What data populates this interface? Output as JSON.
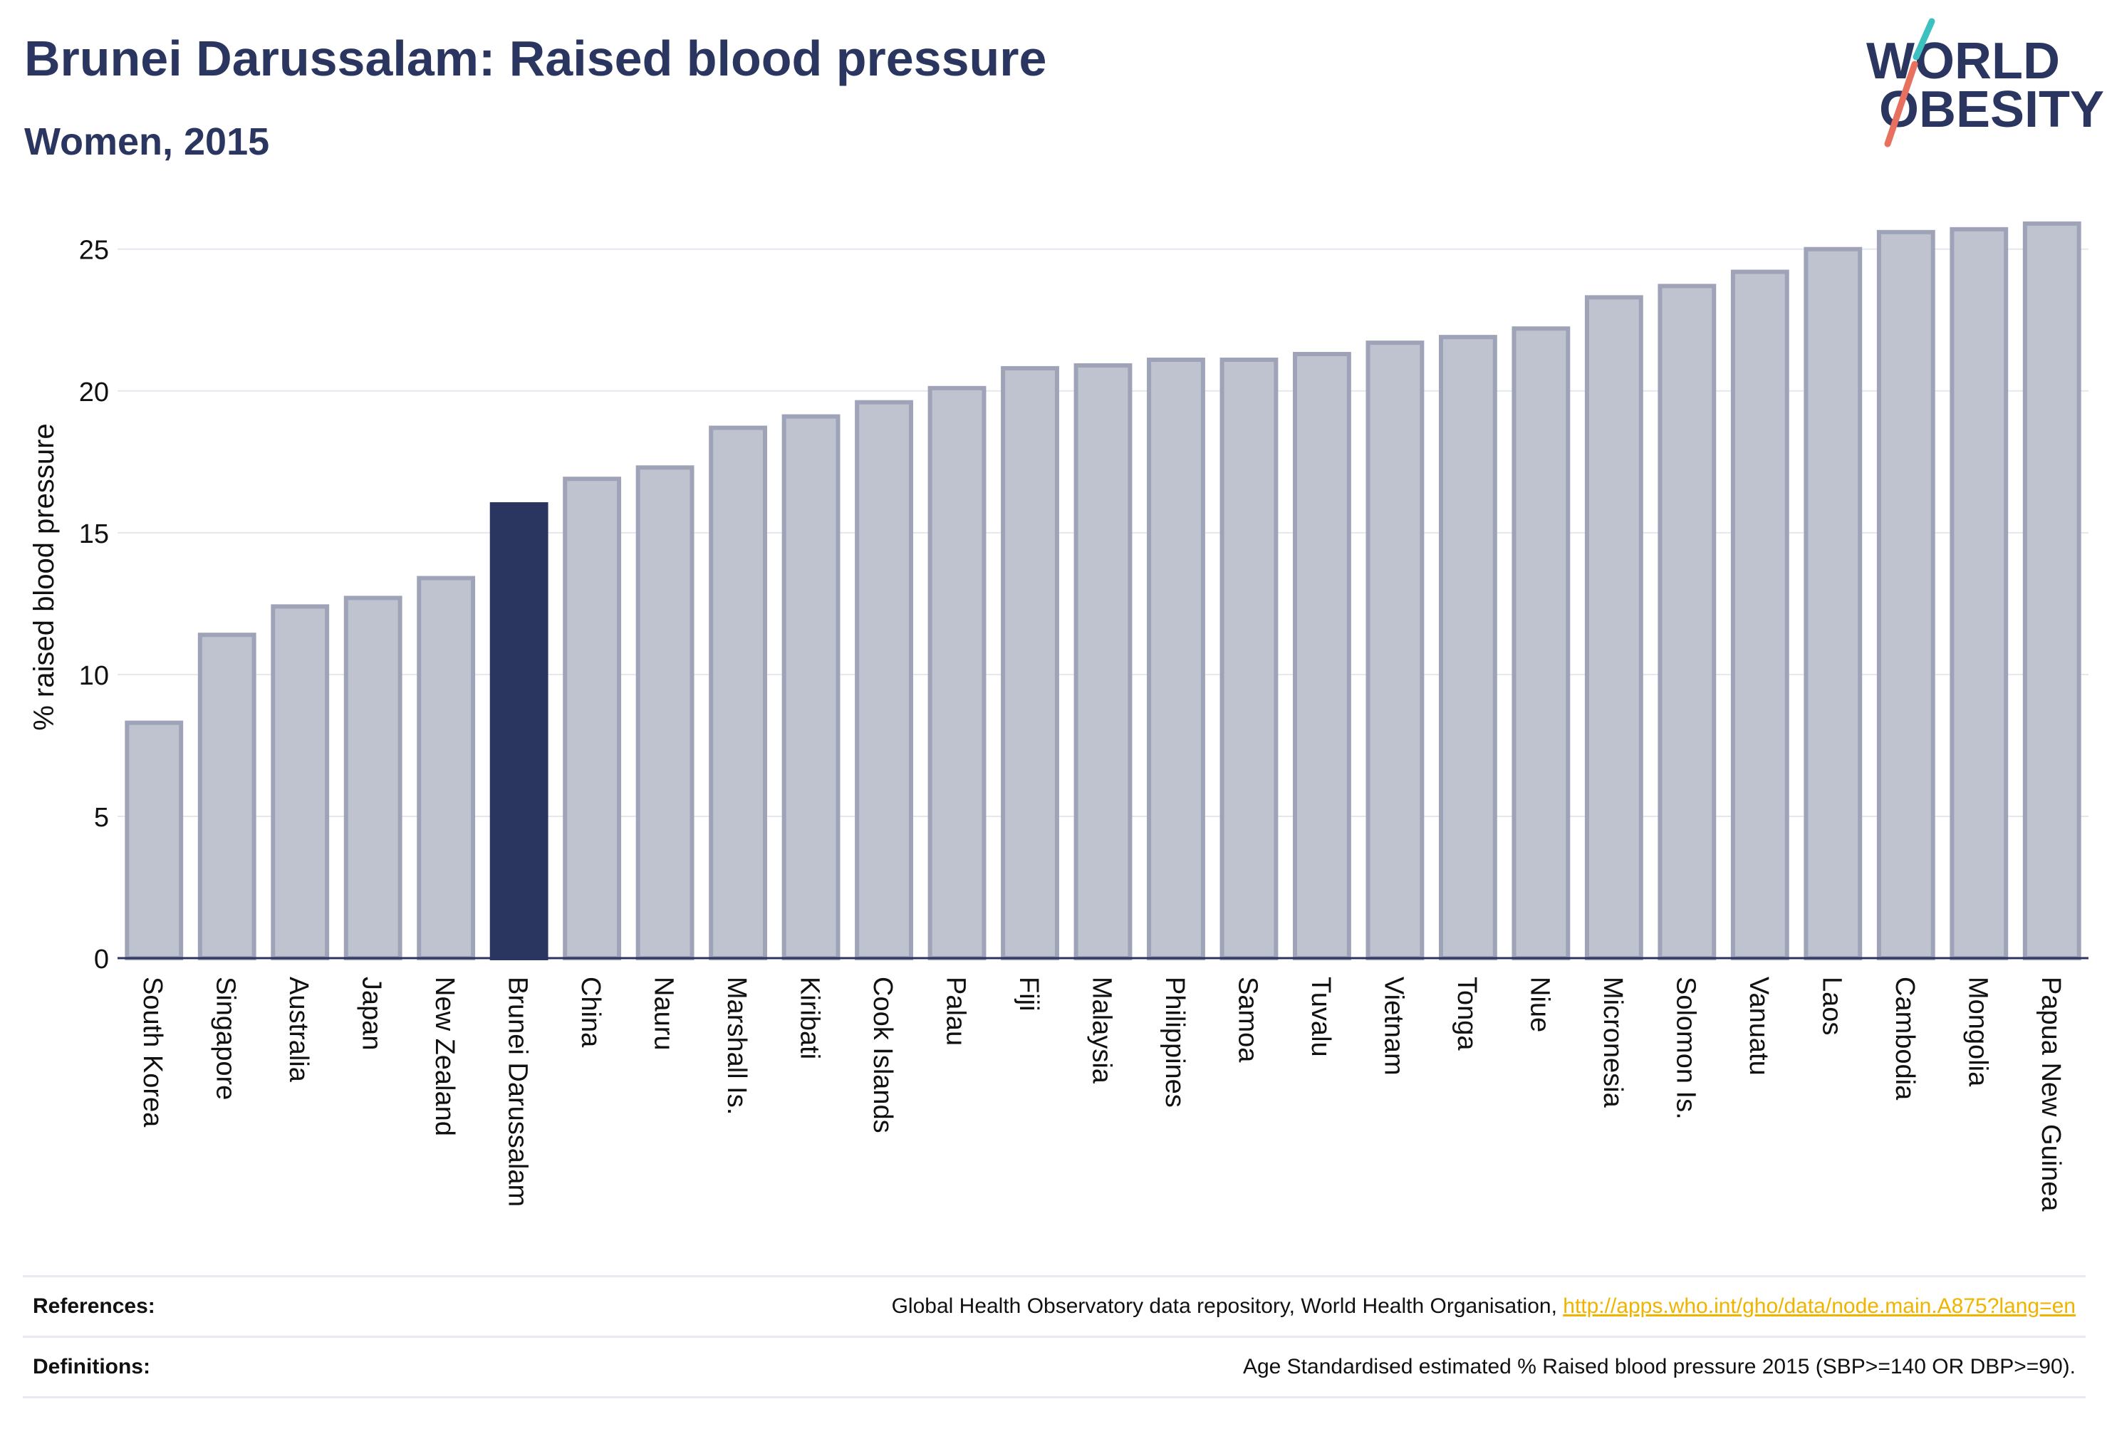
{
  "header": {
    "title": "Brunei Darussalam: Raised blood pressure",
    "subtitle": "Women, 2015"
  },
  "logo": {
    "line1": "WORLD",
    "line2": "OBESITY",
    "colors": {
      "text": "#2b3660",
      "slash_top": "#3cc0c0",
      "slash_bottom": "#e8705f"
    }
  },
  "colors": {
    "bar_fill": "#bfc2cf",
    "bar_stroke": "#9ea3b8",
    "highlight_fill": "#2b3660",
    "grid": "#e6e7ee",
    "axis": "#2b3660",
    "text": "#111111"
  },
  "chart_data": {
    "type": "bar",
    "ylabel": "% raised blood pressure",
    "ylim": [
      0,
      26.5
    ],
    "yticks": [
      0,
      5,
      10,
      15,
      20,
      25
    ],
    "grid": true,
    "highlight": "Brunei Darussalam",
    "categories": [
      "South Korea",
      "Singapore",
      "Australia",
      "Japan",
      "New Zealand",
      "Brunei Darussalam",
      "China",
      "Nauru",
      "Marshall Is.",
      "Kiribati",
      "Cook Islands",
      "Palau",
      "Fiji",
      "Malaysia",
      "Philippines",
      "Samoa",
      "Tuvalu",
      "Vietnam",
      "Tonga",
      "Niue",
      "Micronesia",
      "Solomon Is.",
      "Vanuatu",
      "Laos",
      "Cambodia",
      "Mongolia",
      "Papua New Guinea"
    ],
    "values": [
      8.3,
      11.4,
      12.4,
      12.7,
      13.4,
      16.0,
      16.9,
      17.3,
      18.7,
      19.1,
      19.6,
      20.1,
      20.8,
      20.9,
      21.1,
      21.1,
      21.3,
      21.7,
      21.9,
      22.2,
      23.3,
      23.7,
      24.2,
      25.0,
      25.6,
      25.7,
      25.9
    ]
  },
  "footer": {
    "references_label": "References:",
    "references_text": "Global Health Observatory data repository, World Health Organisation, ",
    "references_link": "http://apps.who.int/gho/data/node.main.A875?lang=en",
    "definitions_label": "Definitions:",
    "definitions_text": "Age Standardised estimated % Raised blood pressure 2015 (SBP>=140 OR DBP>=90)."
  }
}
